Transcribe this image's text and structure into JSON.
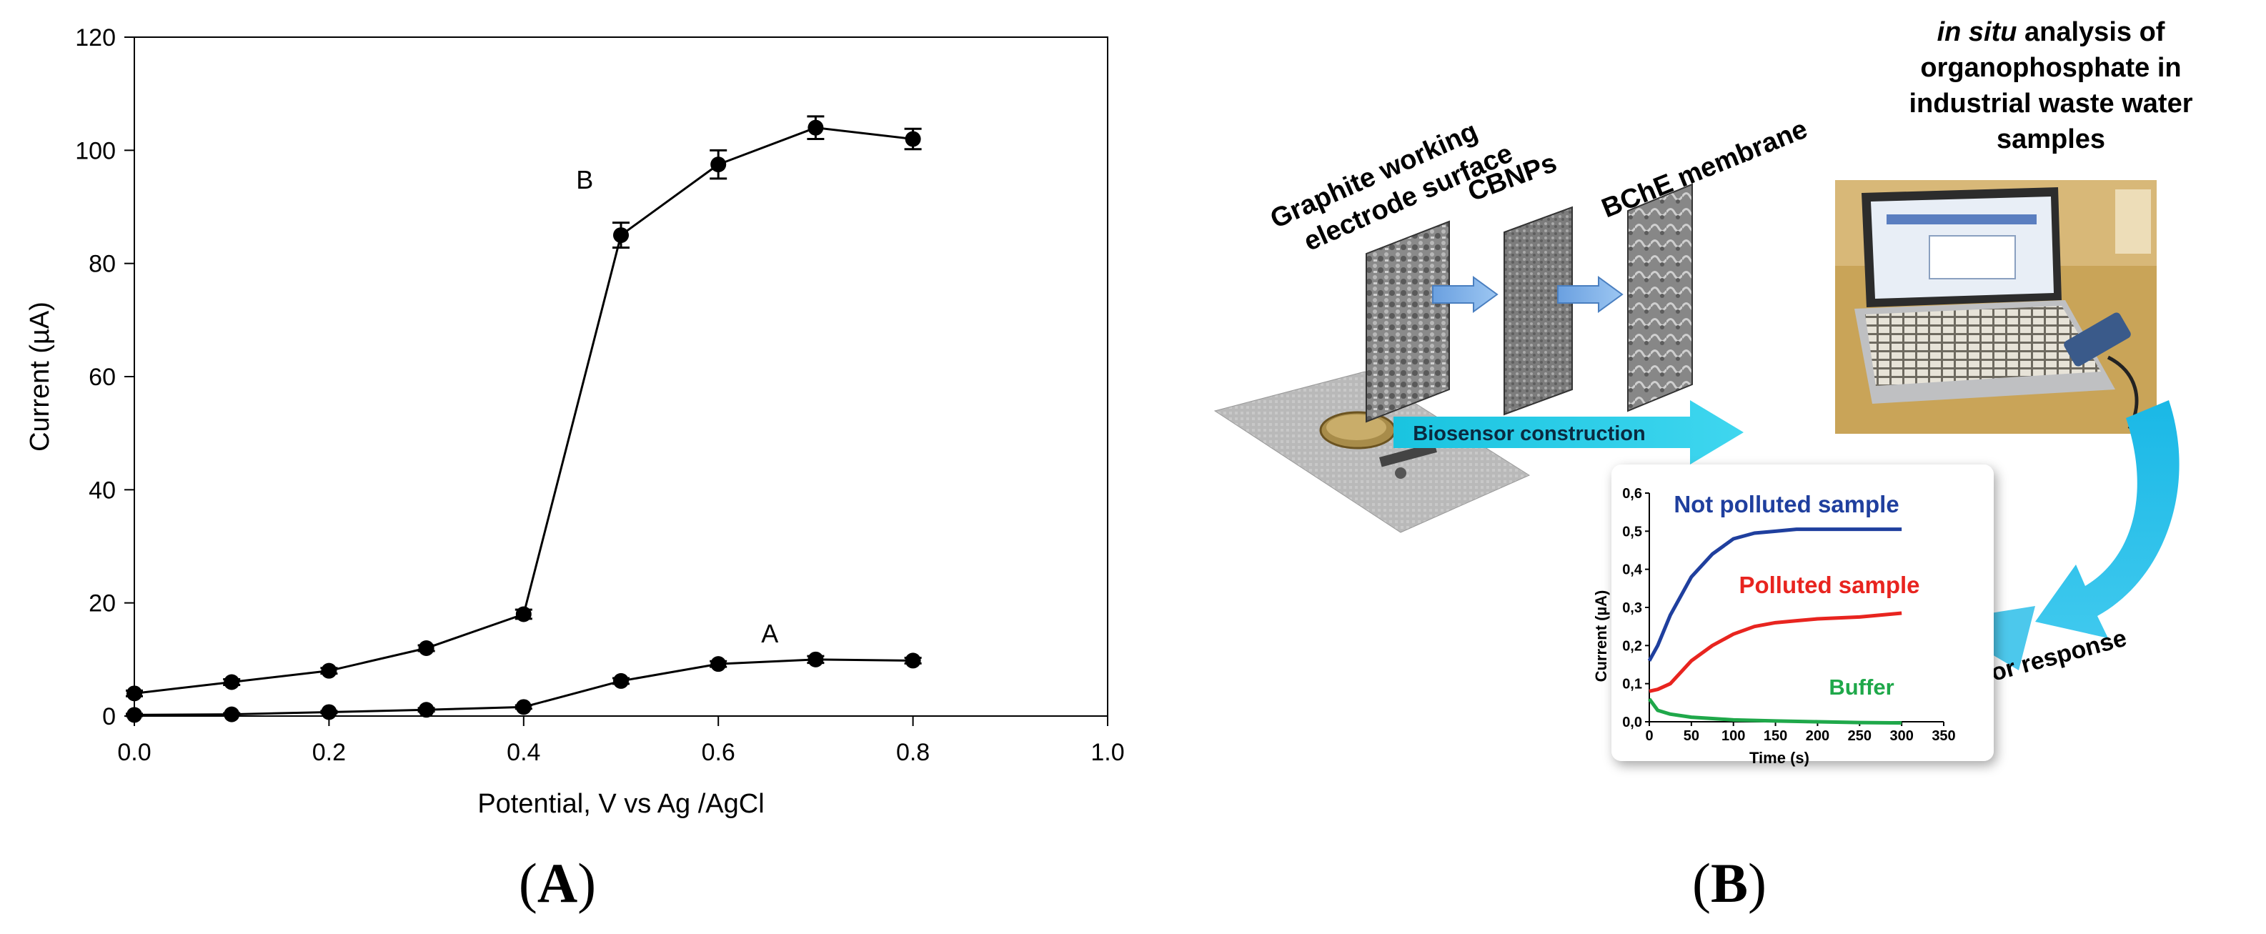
{
  "panel_a": {
    "label": "(A)",
    "chart_data": {
      "type": "line",
      "xlabel": "Potential, V vs Ag /AgCl",
      "ylabel": "Current (µA)",
      "xlim": [
        0.0,
        1.0
      ],
      "ylim": [
        0,
        120
      ],
      "xticks": [
        "0.0",
        "0.2",
        "0.4",
        "0.6",
        "0.8",
        "1.0"
      ],
      "yticks": [
        "0",
        "20",
        "40",
        "60",
        "80",
        "100",
        "120"
      ],
      "grid": false,
      "x": [
        0.0,
        0.1,
        0.2,
        0.3,
        0.4,
        0.5,
        0.6,
        0.7,
        0.8
      ],
      "series": [
        {
          "name": "B",
          "values": [
            4,
            6,
            8,
            12,
            18,
            85,
            97.5,
            104,
            102
          ],
          "errors": [
            0.5,
            0.5,
            0.5,
            0.5,
            0.8,
            2.2,
            2.5,
            2.0,
            1.8
          ]
        },
        {
          "name": "A",
          "values": [
            0.2,
            0.3,
            0.7,
            1.1,
            1.6,
            6.2,
            9.2,
            10,
            9.8
          ],
          "errors": [
            0.2,
            0.2,
            0.2,
            0.3,
            0.3,
            0.5,
            0.5,
            0.6,
            0.5
          ]
        }
      ]
    }
  },
  "panel_b": {
    "label": "(B)",
    "layer_labels": [
      "Graphite  working",
      "electrode surface",
      "CBNPs",
      "BChE membrane"
    ],
    "construction_label": "Biosensor construction",
    "analysis_title": {
      "italic": "in situ",
      "line1_rest": " analysis of",
      "line2": "organophosphate in",
      "line3": "industrial waste water",
      "line4": "samples"
    },
    "response_label": "Biosensor response",
    "inset_chart": {
      "chart_data": {
        "type": "line",
        "xlabel": "Time (s)",
        "ylabel": "Current (µA)",
        "xlim": [
          0,
          350
        ],
        "ylim": [
          0.0,
          0.6
        ],
        "xticks": [
          "0",
          "50",
          "100",
          "150",
          "200",
          "250",
          "300",
          "350"
        ],
        "yticks": [
          "0,0",
          "0,1",
          "0,2",
          "0,3",
          "0,4",
          "0,5",
          "0,6"
        ],
        "series": [
          {
            "name": "Not polluted sample",
            "color": "#1f3f9e",
            "x": [
              0,
              10,
              25,
              50,
              75,
              100,
              125,
              150,
              175,
              200,
              250,
              300
            ],
            "values": [
              0.16,
              0.2,
              0.28,
              0.38,
              0.44,
              0.48,
              0.495,
              0.5,
              0.505,
              0.505,
              0.505,
              0.505
            ]
          },
          {
            "name": "Polluted sample",
            "color": "#e8241f",
            "x": [
              0,
              10,
              25,
              50,
              75,
              100,
              125,
              150,
              175,
              200,
              250,
              300
            ],
            "values": [
              0.08,
              0.085,
              0.1,
              0.16,
              0.2,
              0.23,
              0.25,
              0.26,
              0.265,
              0.27,
              0.275,
              0.285
            ]
          },
          {
            "name": "Buffer",
            "color": "#1fa84a",
            "x": [
              0,
              5,
              10,
              25,
              50,
              100,
              150,
              200,
              250,
              300
            ],
            "values": [
              0.06,
              0.045,
              0.03,
              0.02,
              0.012,
              0.005,
              0.002,
              0.0,
              -0.002,
              -0.003
            ]
          }
        ]
      }
    }
  }
}
